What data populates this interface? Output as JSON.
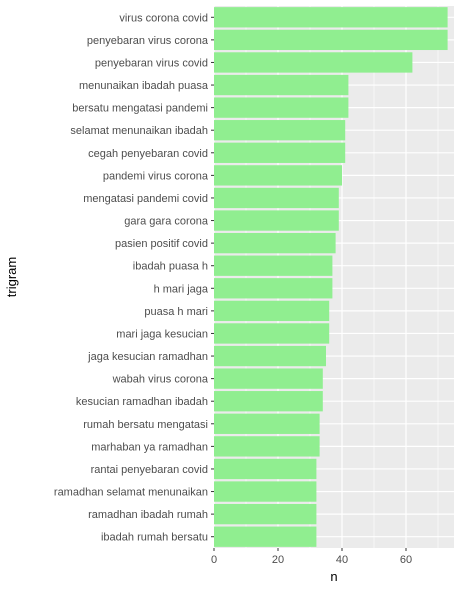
{
  "chart_data": {
    "type": "bar",
    "orientation": "horizontal",
    "xlabel": "n",
    "ylabel": "trigram",
    "xlim": [
      0,
      75
    ],
    "xticks": [
      0,
      20,
      40,
      60
    ],
    "grid": true,
    "bar_color": "#90EE90",
    "panel_color": "#EBEBEB",
    "categories": [
      "virus corona covid",
      "penyebaran virus corona",
      "penyebaran virus covid",
      "menunaikan ibadah puasa",
      "bersatu mengatasi pandemi",
      "selamat menunaikan ibadah",
      "cegah penyebaran covid",
      "pandemi virus corona",
      "mengatasi pandemi covid",
      "gara gara corona",
      "pasien positif covid",
      "ibadah puasa h",
      "h mari jaga",
      "puasa h mari",
      "mari jaga kesucian",
      "jaga kesucian ramadhan",
      "wabah virus corona",
      "kesucian ramadhan ibadah",
      "rumah bersatu mengatasi",
      "marhaban ya ramadhan",
      "rantai penyebaran covid",
      "ramadhan selamat menunaikan",
      "ramadhan ibadah rumah",
      "ibadah rumah bersatu"
    ],
    "values": [
      73,
      73,
      62,
      42,
      42,
      41,
      41,
      40,
      39,
      39,
      38,
      37,
      37,
      36,
      36,
      35,
      34,
      34,
      33,
      33,
      32,
      32,
      32,
      32
    ]
  }
}
